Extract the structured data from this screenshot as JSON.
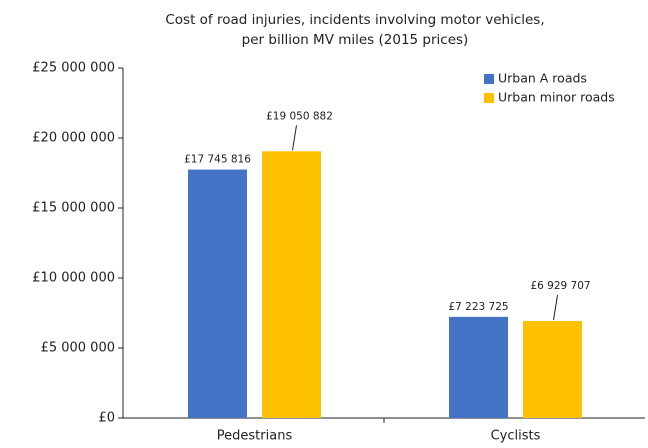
{
  "chart_data": {
    "type": "bar",
    "title": [
      "Cost of road injuries, incidents involving motor vehicles,",
      "per billion MV miles (2015 prices)"
    ],
    "categories": [
      "Pedestrians",
      "Cyclists"
    ],
    "series": [
      {
        "name": "Urban A roads",
        "color": "#4472c4",
        "values": [
          17745816,
          7223725
        ],
        "value_labels": [
          "£17 745 816",
          "£7 223 725"
        ]
      },
      {
        "name": "Urban minor roads",
        "color": "#ffc000",
        "values": [
          19050882,
          6929707
        ],
        "value_labels": [
          "£19 050 882",
          "£6 929 707"
        ]
      }
    ],
    "ylim": [
      0,
      25000000
    ],
    "yticks": [
      {
        "value": 0,
        "label": "£0"
      },
      {
        "value": 5000000,
        "label": "£5 000 000"
      },
      {
        "value": 10000000,
        "label": "£10 000 000"
      },
      {
        "value": 15000000,
        "label": "£15 000 000"
      },
      {
        "value": 20000000,
        "label": "£20 000 000"
      },
      {
        "value": 25000000,
        "label": "£25 000 000"
      }
    ],
    "grid": false,
    "legend": "upper right"
  }
}
